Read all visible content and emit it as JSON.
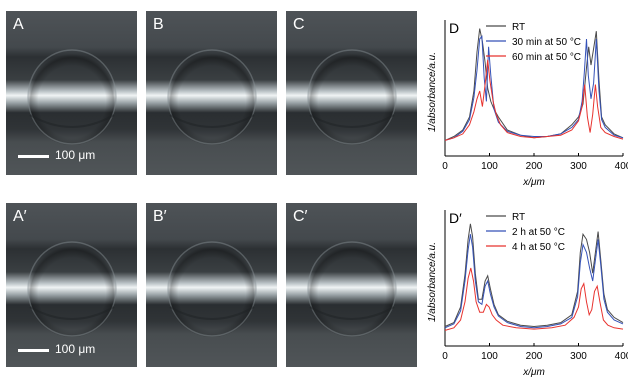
{
  "panels": [
    {
      "label": "A"
    },
    {
      "label": "B"
    },
    {
      "label": "C"
    },
    {
      "label": "A′"
    },
    {
      "label": "B′"
    },
    {
      "label": "C′"
    }
  ],
  "scalebar_label": "100 μm",
  "chart_data": [
    {
      "type": "line",
      "panel_label": "D",
      "xlabel": "x/μm",
      "ylabel": "1/absorbance/a.u.",
      "xlim": [
        0,
        400
      ],
      "xticks": [
        0,
        100,
        200,
        300,
        400
      ],
      "xticklabels": [
        "0",
        "100",
        "200",
        "300",
        "400"
      ],
      "yticks": false,
      "legend": "top-right",
      "series": [
        {
          "name": "RT",
          "color": "#4a4a4a",
          "points": [
            [
              0,
              0.12
            ],
            [
              20,
              0.15
            ],
            [
              40,
              0.2
            ],
            [
              55,
              0.3
            ],
            [
              65,
              0.5
            ],
            [
              72,
              0.8
            ],
            [
              78,
              0.98
            ],
            [
              84,
              0.88
            ],
            [
              90,
              0.72
            ],
            [
              96,
              0.52
            ],
            [
              103,
              0.42
            ],
            [
              110,
              0.36
            ],
            [
              120,
              0.3
            ],
            [
              140,
              0.2
            ],
            [
              170,
              0.16
            ],
            [
              200,
              0.14
            ],
            [
              230,
              0.15
            ],
            [
              260,
              0.17
            ],
            [
              285,
              0.24
            ],
            [
              300,
              0.3
            ],
            [
              310,
              0.4
            ],
            [
              318,
              0.68
            ],
            [
              323,
              0.84
            ],
            [
              328,
              0.7
            ],
            [
              335,
              0.85
            ],
            [
              340,
              0.96
            ],
            [
              346,
              0.58
            ],
            [
              352,
              0.3
            ],
            [
              360,
              0.24
            ],
            [
              380,
              0.17
            ],
            [
              400,
              0.14
            ]
          ]
        },
        {
          "name": "30 min at 50 °C",
          "color": "#3552b8",
          "points": [
            [
              0,
              0.12
            ],
            [
              20,
              0.14
            ],
            [
              40,
              0.19
            ],
            [
              55,
              0.28
            ],
            [
              65,
              0.45
            ],
            [
              72,
              0.66
            ],
            [
              78,
              0.9
            ],
            [
              83,
              0.92
            ],
            [
              88,
              0.6
            ],
            [
              93,
              0.42
            ],
            [
              98,
              0.84
            ],
            [
              103,
              0.62
            ],
            [
              110,
              0.36
            ],
            [
              120,
              0.26
            ],
            [
              140,
              0.19
            ],
            [
              170,
              0.16
            ],
            [
              200,
              0.15
            ],
            [
              230,
              0.15
            ],
            [
              260,
              0.17
            ],
            [
              285,
              0.22
            ],
            [
              300,
              0.28
            ],
            [
              308,
              0.42
            ],
            [
              313,
              0.64
            ],
            [
              318,
              0.9
            ],
            [
              322,
              0.62
            ],
            [
              328,
              0.44
            ],
            [
              334,
              0.56
            ],
            [
              340,
              0.9
            ],
            [
              346,
              0.5
            ],
            [
              352,
              0.28
            ],
            [
              360,
              0.22
            ],
            [
              380,
              0.16
            ],
            [
              400,
              0.14
            ]
          ]
        },
        {
          "name": "60 min at 50 °C",
          "color": "#e8332f",
          "points": [
            [
              0,
              0.12
            ],
            [
              20,
              0.14
            ],
            [
              40,
              0.17
            ],
            [
              55,
              0.24
            ],
            [
              65,
              0.34
            ],
            [
              72,
              0.44
            ],
            [
              78,
              0.5
            ],
            [
              84,
              0.38
            ],
            [
              90,
              0.55
            ],
            [
              96,
              0.74
            ],
            [
              101,
              0.58
            ],
            [
              108,
              0.42
            ],
            [
              115,
              0.32
            ],
            [
              125,
              0.24
            ],
            [
              140,
              0.18
            ],
            [
              170,
              0.15
            ],
            [
              200,
              0.14
            ],
            [
              230,
              0.15
            ],
            [
              260,
              0.16
            ],
            [
              285,
              0.2
            ],
            [
              300,
              0.27
            ],
            [
              308,
              0.38
            ],
            [
              314,
              0.55
            ],
            [
              320,
              0.3
            ],
            [
              326,
              0.18
            ],
            [
              332,
              0.32
            ],
            [
              338,
              0.55
            ],
            [
              343,
              0.38
            ],
            [
              350,
              0.22
            ],
            [
              360,
              0.18
            ],
            [
              380,
              0.15
            ],
            [
              400,
              0.13
            ]
          ]
        }
      ]
    },
    {
      "type": "line",
      "panel_label": "D′",
      "xlabel": "x/μm",
      "ylabel": "1/absorbance/a.u.",
      "xlim": [
        0,
        400
      ],
      "xticks": [
        0,
        100,
        200,
        300,
        400
      ],
      "xticklabels": [
        "0",
        "100",
        "200",
        "300",
        "400"
      ],
      "yticks": false,
      "legend": "top-right",
      "series": [
        {
          "name": "RT",
          "color": "#4a4a4a",
          "points": [
            [
              0,
              0.15
            ],
            [
              20,
              0.18
            ],
            [
              35,
              0.3
            ],
            [
              45,
              0.55
            ],
            [
              52,
              0.82
            ],
            [
              57,
              0.94
            ],
            [
              62,
              0.84
            ],
            [
              68,
              0.56
            ],
            [
              75,
              0.36
            ],
            [
              83,
              0.36
            ],
            [
              90,
              0.5
            ],
            [
              96,
              0.54
            ],
            [
              102,
              0.44
            ],
            [
              110,
              0.32
            ],
            [
              120,
              0.24
            ],
            [
              140,
              0.19
            ],
            [
              170,
              0.16
            ],
            [
              200,
              0.15
            ],
            [
              230,
              0.16
            ],
            [
              260,
              0.18
            ],
            [
              285,
              0.24
            ],
            [
              298,
              0.42
            ],
            [
              304,
              0.72
            ],
            [
              310,
              0.86
            ],
            [
              318,
              0.82
            ],
            [
              325,
              0.72
            ],
            [
              332,
              0.56
            ],
            [
              338,
              0.72
            ],
            [
              344,
              0.88
            ],
            [
              350,
              0.66
            ],
            [
              357,
              0.4
            ],
            [
              365,
              0.28
            ],
            [
              380,
              0.22
            ],
            [
              400,
              0.18
            ]
          ]
        },
        {
          "name": "2 h at 50 °C",
          "color": "#3552b8",
          "points": [
            [
              0,
              0.14
            ],
            [
              20,
              0.17
            ],
            [
              35,
              0.27
            ],
            [
              45,
              0.5
            ],
            [
              52,
              0.74
            ],
            [
              57,
              0.86
            ],
            [
              62,
              0.76
            ],
            [
              68,
              0.5
            ],
            [
              75,
              0.34
            ],
            [
              83,
              0.32
            ],
            [
              90,
              0.46
            ],
            [
              96,
              0.5
            ],
            [
              102,
              0.4
            ],
            [
              110,
              0.3
            ],
            [
              120,
              0.23
            ],
            [
              140,
              0.18
            ],
            [
              170,
              0.15
            ],
            [
              200,
              0.14
            ],
            [
              230,
              0.15
            ],
            [
              260,
              0.17
            ],
            [
              285,
              0.22
            ],
            [
              298,
              0.38
            ],
            [
              304,
              0.64
            ],
            [
              310,
              0.78
            ],
            [
              318,
              0.72
            ],
            [
              325,
              0.6
            ],
            [
              332,
              0.5
            ],
            [
              338,
              0.66
            ],
            [
              344,
              0.82
            ],
            [
              350,
              0.62
            ],
            [
              357,
              0.36
            ],
            [
              365,
              0.26
            ],
            [
              380,
              0.2
            ],
            [
              400,
              0.17
            ]
          ]
        },
        {
          "name": "4 h at 50 °C",
          "color": "#e8332f",
          "points": [
            [
              0,
              0.12
            ],
            [
              20,
              0.14
            ],
            [
              35,
              0.2
            ],
            [
              45,
              0.34
            ],
            [
              52,
              0.52
            ],
            [
              58,
              0.6
            ],
            [
              64,
              0.5
            ],
            [
              70,
              0.34
            ],
            [
              78,
              0.26
            ],
            [
              86,
              0.26
            ],
            [
              93,
              0.32
            ],
            [
              99,
              0.3
            ],
            [
              106,
              0.24
            ],
            [
              115,
              0.2
            ],
            [
              130,
              0.16
            ],
            [
              160,
              0.14
            ],
            [
              200,
              0.13
            ],
            [
              240,
              0.14
            ],
            [
              270,
              0.16
            ],
            [
              290,
              0.22
            ],
            [
              300,
              0.3
            ],
            [
              306,
              0.44
            ],
            [
              312,
              0.48
            ],
            [
              318,
              0.34
            ],
            [
              324,
              0.24
            ],
            [
              330,
              0.28
            ],
            [
              336,
              0.42
            ],
            [
              342,
              0.46
            ],
            [
              348,
              0.34
            ],
            [
              356,
              0.2
            ],
            [
              366,
              0.16
            ],
            [
              380,
              0.14
            ],
            [
              400,
              0.13
            ]
          ]
        }
      ]
    }
  ]
}
